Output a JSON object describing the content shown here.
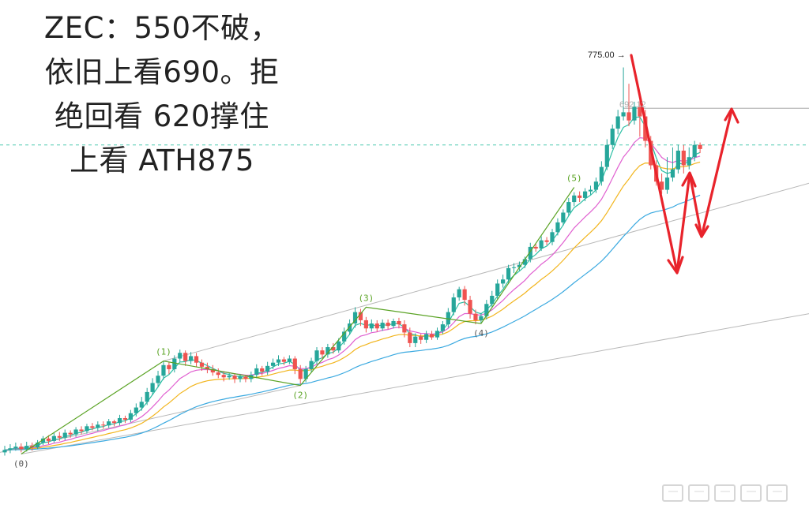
{
  "headline": {
    "line1": "ZEC：550不破，",
    "line2": "依旧上看690。拒",
    "line3": "绝回看 620撑住",
    "line4": "上看 ATH875"
  },
  "chart_data": {
    "type": "candlestick",
    "colors": {
      "up": "#26a69a",
      "down": "#ef5350",
      "ema_fast": "#2bbfa4",
      "ema_mid": "#e05fd0",
      "ema_slow": "#f2b51d",
      "ema_long": "#3aa9e0",
      "wave": "#5aa324",
      "arrows": "#e8232b",
      "channel": "#b8b8b8",
      "level_dashed": "#4fc9b0"
    },
    "candles": [
      [
        0,
        578,
        581,
        574,
        586
      ],
      [
        1,
        581,
        583,
        577,
        588
      ],
      [
        2,
        583,
        585,
        580,
        590
      ],
      [
        3,
        585,
        582,
        578,
        589
      ],
      [
        4,
        582,
        586,
        579,
        591
      ],
      [
        5,
        586,
        584,
        580,
        590
      ],
      [
        6,
        584,
        590,
        582,
        593
      ],
      [
        7,
        590,
        595,
        587,
        598
      ],
      [
        8,
        595,
        592,
        588,
        599
      ],
      [
        9,
        592,
        598,
        590,
        602
      ],
      [
        10,
        598,
        596,
        592,
        603
      ],
      [
        11,
        596,
        602,
        593,
        606
      ],
      [
        12,
        602,
        600,
        596,
        605
      ],
      [
        13,
        600,
        606,
        597,
        609
      ],
      [
        14,
        606,
        604,
        600,
        610
      ],
      [
        15,
        604,
        610,
        601,
        613
      ],
      [
        16,
        610,
        608,
        605,
        614
      ],
      [
        17,
        608,
        612,
        604,
        616
      ],
      [
        18,
        612,
        611,
        607,
        616
      ],
      [
        19,
        611,
        616,
        608,
        619
      ],
      [
        20,
        616,
        614,
        610,
        618
      ],
      [
        21,
        614,
        620,
        611,
        624
      ],
      [
        22,
        620,
        618,
        614,
        623
      ],
      [
        23,
        618,
        626,
        615,
        630
      ],
      [
        24,
        626,
        633,
        622,
        638
      ],
      [
        25,
        633,
        640,
        629,
        646
      ],
      [
        26,
        640,
        652,
        636,
        657
      ],
      [
        27,
        652,
        663,
        648,
        669
      ],
      [
        28,
        663,
        672,
        658,
        678
      ],
      [
        29,
        672,
        685,
        667,
        690
      ],
      [
        30,
        685,
        680,
        674,
        689
      ],
      [
        31,
        680,
        693,
        676,
        697
      ],
      [
        32,
        693,
        700,
        689,
        704
      ],
      [
        33,
        700,
        690,
        684,
        703
      ],
      [
        34,
        690,
        696,
        686,
        701
      ],
      [
        35,
        696,
        688,
        683,
        700
      ],
      [
        36,
        688,
        683,
        678,
        692
      ],
      [
        37,
        683,
        680,
        675,
        688
      ],
      [
        38,
        680,
        676,
        672,
        685
      ],
      [
        39,
        676,
        673,
        669,
        681
      ],
      [
        40,
        673,
        670,
        665,
        677
      ],
      [
        41,
        670,
        672,
        667,
        676
      ],
      [
        42,
        672,
        668,
        663,
        675
      ],
      [
        43,
        668,
        671,
        664,
        674
      ],
      [
        44,
        671,
        668,
        664,
        673
      ],
      [
        45,
        668,
        673,
        664,
        677
      ],
      [
        46,
        673,
        681,
        669,
        686
      ],
      [
        47,
        681,
        677,
        672,
        684
      ],
      [
        48,
        677,
        684,
        673,
        689
      ],
      [
        49,
        684,
        688,
        680,
        693
      ],
      [
        50,
        688,
        692,
        684,
        697
      ],
      [
        51,
        692,
        689,
        685,
        695
      ],
      [
        52,
        689,
        693,
        686,
        697
      ],
      [
        53,
        693,
        680,
        674,
        696
      ],
      [
        54,
        680,
        668,
        662,
        685
      ],
      [
        55,
        668,
        680,
        664,
        684
      ],
      [
        56,
        680,
        690,
        676,
        694
      ],
      [
        57,
        690,
        703,
        686,
        707
      ],
      [
        58,
        703,
        698,
        693,
        707
      ],
      [
        59,
        698,
        707,
        694,
        711
      ],
      [
        60,
        707,
        703,
        699,
        712
      ],
      [
        61,
        703,
        714,
        700,
        718
      ],
      [
        62,
        714,
        726,
        710,
        731
      ],
      [
        63,
        726,
        736,
        722,
        741
      ],
      [
        64,
        736,
        750,
        731,
        756
      ],
      [
        65,
        750,
        740,
        733,
        754
      ],
      [
        66,
        740,
        730,
        725,
        744
      ],
      [
        67,
        730,
        736,
        726,
        741
      ],
      [
        68,
        736,
        730,
        726,
        740
      ],
      [
        69,
        730,
        737,
        727,
        741
      ],
      [
        70,
        737,
        733,
        729,
        741
      ],
      [
        71,
        733,
        739,
        730,
        742
      ],
      [
        72,
        739,
        735,
        730,
        743
      ],
      [
        73,
        735,
        725,
        719,
        740
      ],
      [
        74,
        725,
        712,
        707,
        731
      ],
      [
        75,
        712,
        720,
        707,
        724
      ],
      [
        76,
        720,
        716,
        711,
        723
      ],
      [
        77,
        716,
        723,
        712,
        727
      ],
      [
        78,
        723,
        719,
        716,
        727
      ],
      [
        79,
        719,
        727,
        716,
        731
      ],
      [
        80,
        727,
        735,
        723,
        739
      ],
      [
        81,
        735,
        750,
        731,
        755
      ],
      [
        82,
        750,
        768,
        746,
        773
      ],
      [
        83,
        768,
        778,
        764,
        781
      ],
      [
        84,
        778,
        765,
        758,
        782
      ],
      [
        85,
        765,
        748,
        742,
        770
      ],
      [
        86,
        748,
        740,
        735,
        753
      ],
      [
        87,
        740,
        745,
        736,
        749
      ],
      [
        88,
        745,
        760,
        741,
        765
      ],
      [
        89,
        760,
        770,
        756,
        776
      ],
      [
        90,
        770,
        785,
        766,
        790
      ],
      [
        91,
        785,
        790,
        780,
        796
      ],
      [
        92,
        790,
        804,
        786,
        808
      ],
      [
        93,
        804,
        805,
        798,
        810
      ],
      [
        94,
        805,
        808,
        801,
        812
      ],
      [
        95,
        808,
        815,
        804,
        818
      ],
      [
        96,
        815,
        830,
        811,
        835
      ],
      [
        97,
        830,
        828,
        824,
        834
      ],
      [
        98,
        828,
        838,
        825,
        843
      ],
      [
        99,
        838,
        836,
        832,
        842
      ],
      [
        100,
        836,
        848,
        832,
        852
      ],
      [
        101,
        848,
        860,
        844,
        865
      ],
      [
        102,
        860,
        872,
        856,
        876
      ],
      [
        103,
        872,
        885,
        868,
        890
      ],
      [
        104,
        885,
        893,
        880,
        897
      ],
      [
        105,
        893,
        890,
        885,
        898
      ],
      [
        106,
        890,
        898,
        886,
        902
      ],
      [
        107,
        898,
        900,
        894,
        905
      ],
      [
        108,
        900,
        910,
        896,
        915
      ],
      [
        109,
        910,
        928,
        905,
        935
      ],
      [
        110,
        928,
        955,
        924,
        962
      ],
      [
        111,
        955,
        975,
        950,
        980
      ],
      [
        112,
        975,
        990,
        968,
        998
      ],
      [
        113,
        990,
        995,
        985,
        1050
      ],
      [
        114,
        995,
        985,
        978,
        1030
      ],
      [
        115,
        985,
        1002,
        980,
        1008
      ],
      [
        116,
        1002,
        990,
        965,
        1010
      ],
      [
        117,
        990,
        960,
        952,
        998
      ],
      [
        118,
        960,
        930,
        925,
        966
      ],
      [
        119,
        930,
        910,
        905,
        936
      ],
      [
        120,
        910,
        900,
        895,
        920
      ],
      [
        121,
        900,
        915,
        895,
        940
      ],
      [
        122,
        915,
        925,
        910,
        952
      ],
      [
        123,
        925,
        948,
        920,
        955
      ],
      [
        124,
        948,
        930,
        920,
        955
      ],
      [
        125,
        930,
        940,
        925,
        952
      ],
      [
        126,
        940,
        955,
        935,
        960
      ],
      [
        127,
        955,
        950,
        945,
        958
      ]
    ],
    "ema_period_labels": [],
    "waves": [
      {
        "label": "(0)",
        "i": 3,
        "v": 576
      },
      {
        "label": "(1)",
        "i": 29,
        "v": 690
      },
      {
        "label": "(2)",
        "i": 54,
        "v": 660
      },
      {
        "label": "(3)",
        "i": 66,
        "v": 756
      },
      {
        "label": "(4)",
        "i": 87,
        "v": 736
      },
      {
        "label": "(5)",
        "i": 104,
        "v": 903
      }
    ],
    "price_labels": {
      "high": "775.00",
      "target": "692.12"
    },
    "levels": {
      "high": 1050,
      "target": 1000,
      "dashed": 955
    },
    "ylim": [
      560,
      1065
    ],
    "xlim": [
      0,
      145
    ]
  }
}
